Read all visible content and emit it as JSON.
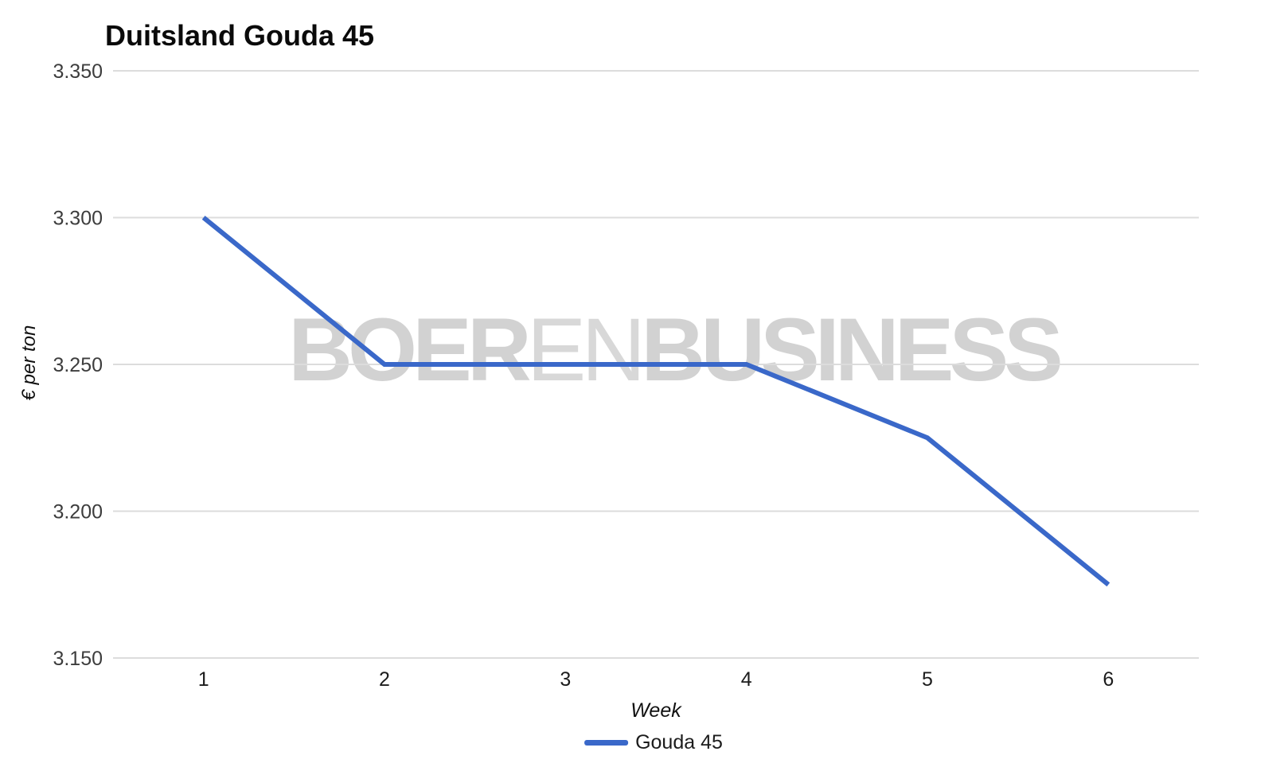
{
  "watermark": {
    "part1": "BOER",
    "part2": "EN",
    "part3": "BUSINESS",
    "color": "#d2d2d2",
    "light_color": "#d8d8d8"
  },
  "chart_data": {
    "type": "line",
    "title": "Duitsland Gouda 45",
    "xlabel": "Week",
    "ylabel": "€ per ton",
    "x": [
      1,
      2,
      3,
      4,
      5,
      6
    ],
    "x_tick_labels": [
      "1",
      "2",
      "3",
      "4",
      "5",
      "6"
    ],
    "series": [
      {
        "name": "Gouda 45",
        "color": "#3a68c9",
        "values": [
          3300,
          3250,
          3250,
          3250,
          3225,
          3175
        ]
      }
    ],
    "ylim": [
      3150,
      3350
    ],
    "yticks": [
      {
        "value": 3350,
        "label": "3.350"
      },
      {
        "value": 3300,
        "label": "3.300"
      },
      {
        "value": 3250,
        "label": "3.250"
      },
      {
        "value": 3200,
        "label": "3.200"
      },
      {
        "value": 3150,
        "label": "3.150"
      }
    ],
    "grid": true,
    "gridline_color": "#dcdcdc",
    "y_tick_color": "#3d3d3d",
    "x_tick_color": "#1c1c1c",
    "legend": {
      "position": "bottom",
      "items": [
        {
          "label": "Gouda 45",
          "color": "#3a68c9"
        }
      ]
    }
  }
}
